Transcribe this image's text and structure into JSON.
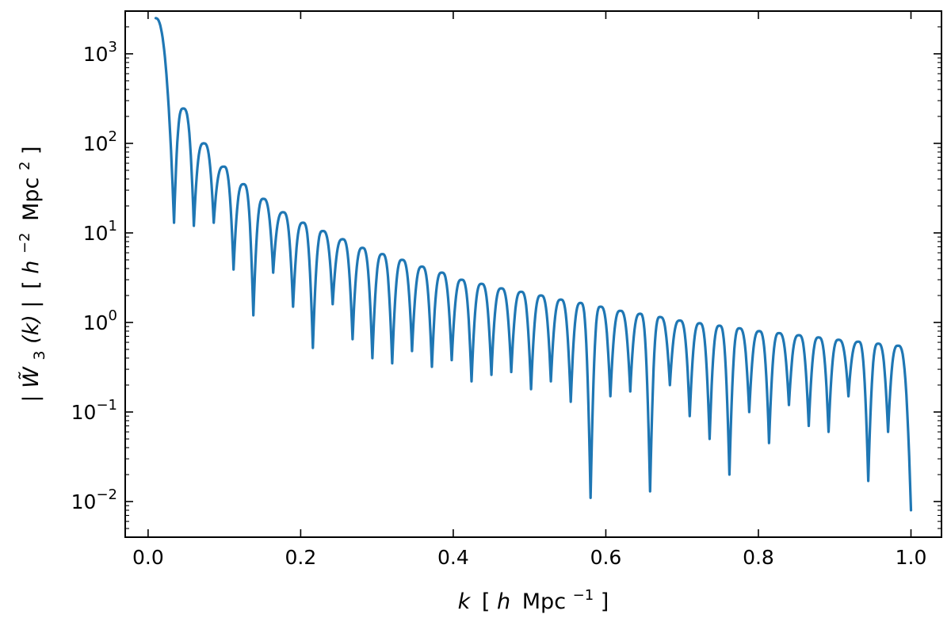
{
  "chart_data": {
    "type": "line",
    "xlabel": {
      "var": "k",
      "open": "[",
      "unit_prefix": "h",
      "unit": "Mpc",
      "unit_sup": "−1",
      "close": "]"
    },
    "ylabel": {
      "bar": "|",
      "var": "W̃",
      "sub": "3",
      "args": "(k)",
      "open": "[",
      "unit_prefix": "h",
      "unit_prefix_sup": "−2",
      "unit": "Mpc",
      "unit_sup": "2",
      "close": "]"
    },
    "xlim": [
      -0.03,
      1.04
    ],
    "ylim": [
      0.004,
      3000
    ],
    "yscale": "log",
    "grid": false,
    "x_ticks": [
      {
        "value": 0.0,
        "label": "0.0"
      },
      {
        "value": 0.2,
        "label": "0.2"
      },
      {
        "value": 0.4,
        "label": "0.4"
      },
      {
        "value": 0.6,
        "label": "0.6"
      },
      {
        "value": 0.8,
        "label": "0.8"
      },
      {
        "value": 1.0,
        "label": "1.0"
      }
    ],
    "y_ticks": [
      {
        "value": 0.01,
        "base": "10",
        "exp": "−2"
      },
      {
        "value": 0.1,
        "base": "10",
        "exp": "−1"
      },
      {
        "value": 1,
        "base": "10",
        "exp": "0"
      },
      {
        "value": 10,
        "base": "10",
        "exp": "1"
      },
      {
        "value": 100,
        "base": "10",
        "exp": "2"
      },
      {
        "value": 1000,
        "base": "10",
        "exp": "3"
      }
    ],
    "series": [
      {
        "color": "#1f77b4",
        "x_start": 0.01,
        "x_end": 1.0,
        "peaks": [
          {
            "x": 0.01,
            "y": 2500
          },
          {
            "x": 0.046,
            "y": 245
          },
          {
            "x": 0.073,
            "y": 100
          },
          {
            "x": 0.099,
            "y": 55
          },
          {
            "x": 0.125,
            "y": 35
          },
          {
            "x": 0.151,
            "y": 24
          },
          {
            "x": 0.177,
            "y": 17
          },
          {
            "x": 0.203,
            "y": 13
          },
          {
            "x": 0.229,
            "y": 10.5
          },
          {
            "x": 0.255,
            "y": 8.5
          },
          {
            "x": 0.281,
            "y": 6.8
          },
          {
            "x": 0.307,
            "y": 5.8
          },
          {
            "x": 0.333,
            "y": 5.0
          },
          {
            "x": 0.359,
            "y": 4.2
          },
          {
            "x": 0.385,
            "y": 3.6
          },
          {
            "x": 0.411,
            "y": 3.0
          },
          {
            "x": 0.437,
            "y": 2.7
          },
          {
            "x": 0.463,
            "y": 2.4
          },
          {
            "x": 0.489,
            "y": 2.2
          },
          {
            "x": 0.515,
            "y": 2.0
          },
          {
            "x": 0.541,
            "y": 1.8
          },
          {
            "x": 0.567,
            "y": 1.65
          },
          {
            "x": 0.593,
            "y": 1.5
          },
          {
            "x": 0.619,
            "y": 1.35
          },
          {
            "x": 0.645,
            "y": 1.25
          },
          {
            "x": 0.671,
            "y": 1.15
          },
          {
            "x": 0.697,
            "y": 1.05
          },
          {
            "x": 0.723,
            "y": 0.98
          },
          {
            "x": 0.749,
            "y": 0.92
          },
          {
            "x": 0.775,
            "y": 0.86
          },
          {
            "x": 0.801,
            "y": 0.8
          },
          {
            "x": 0.827,
            "y": 0.76
          },
          {
            "x": 0.853,
            "y": 0.72
          },
          {
            "x": 0.879,
            "y": 0.68
          },
          {
            "x": 0.905,
            "y": 0.64
          },
          {
            "x": 0.931,
            "y": 0.61
          },
          {
            "x": 0.957,
            "y": 0.58
          },
          {
            "x": 0.983,
            "y": 0.55
          }
        ],
        "troughs": [
          {
            "x": 0.034,
            "y": 13
          },
          {
            "x": 0.06,
            "y": 12
          },
          {
            "x": 0.086,
            "y": 13
          },
          {
            "x": 0.112,
            "y": 3.9
          },
          {
            "x": 0.138,
            "y": 1.2
          },
          {
            "x": 0.164,
            "y": 3.6
          },
          {
            "x": 0.19,
            "y": 1.5
          },
          {
            "x": 0.216,
            "y": 0.52
          },
          {
            "x": 0.242,
            "y": 1.6
          },
          {
            "x": 0.268,
            "y": 0.65
          },
          {
            "x": 0.294,
            "y": 0.4
          },
          {
            "x": 0.32,
            "y": 0.35
          },
          {
            "x": 0.346,
            "y": 0.48
          },
          {
            "x": 0.372,
            "y": 0.32
          },
          {
            "x": 0.398,
            "y": 0.38
          },
          {
            "x": 0.424,
            "y": 0.22
          },
          {
            "x": 0.45,
            "y": 0.26
          },
          {
            "x": 0.476,
            "y": 0.28
          },
          {
            "x": 0.502,
            "y": 0.18
          },
          {
            "x": 0.528,
            "y": 0.22
          },
          {
            "x": 0.554,
            "y": 0.13
          },
          {
            "x": 0.58,
            "y": 0.011
          },
          {
            "x": 0.606,
            "y": 0.15
          },
          {
            "x": 0.632,
            "y": 0.17
          },
          {
            "x": 0.658,
            "y": 0.013
          },
          {
            "x": 0.684,
            "y": 0.2
          },
          {
            "x": 0.71,
            "y": 0.09
          },
          {
            "x": 0.736,
            "y": 0.05
          },
          {
            "x": 0.762,
            "y": 0.02
          },
          {
            "x": 0.788,
            "y": 0.1
          },
          {
            "x": 0.814,
            "y": 0.045
          },
          {
            "x": 0.84,
            "y": 0.12
          },
          {
            "x": 0.866,
            "y": 0.07
          },
          {
            "x": 0.892,
            "y": 0.06
          },
          {
            "x": 0.918,
            "y": 0.15
          },
          {
            "x": 0.944,
            "y": 0.017
          },
          {
            "x": 0.97,
            "y": 0.06
          }
        ],
        "end_point": {
          "x": 1.0,
          "y": 0.008
        }
      }
    ]
  }
}
